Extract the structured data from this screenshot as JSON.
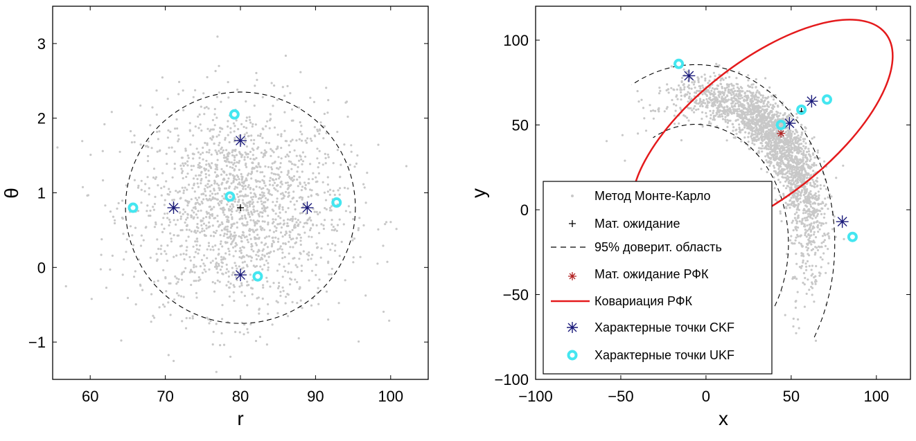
{
  "chart_data": [
    {
      "type": "scatter",
      "title": "",
      "xlabel": "r",
      "ylabel": "θ",
      "xlim": [
        55,
        105
      ],
      "ylim": [
        -1.5,
        3.5
      ],
      "xticks": [
        "60",
        "70",
        "80",
        "90",
        "100"
      ],
      "yticks": [
        "−1",
        "0",
        "1",
        "2",
        "3"
      ],
      "grid": false,
      "legend": null,
      "cloud": {
        "center": [
          80,
          0.8
        ],
        "std": [
          7,
          0.7
        ],
        "count": 1800,
        "color": "#c8c8c8"
      },
      "mean": {
        "x": 80,
        "y": 0.8
      },
      "confidence_circle": {
        "center": [
          80,
          0.8
        ],
        "rx": 15.3,
        "ry": 1.55
      },
      "ckf_points": [
        {
          "x": 80,
          "y": 1.7
        },
        {
          "x": 71.1,
          "y": 0.8
        },
        {
          "x": 88.9,
          "y": 0.8
        },
        {
          "x": 80,
          "y": -0.1
        }
      ],
      "ukf_points": [
        {
          "x": 79.2,
          "y": 2.05
        },
        {
          "x": 65.7,
          "y": 0.8
        },
        {
          "x": 78.6,
          "y": 0.95
        },
        {
          "x": 92.8,
          "y": 0.87
        },
        {
          "x": 82.3,
          "y": -0.12
        }
      ]
    },
    {
      "type": "scatter",
      "title": "",
      "xlabel": "x",
      "ylabel": "y",
      "xlim": [
        -100,
        120
      ],
      "ylim": [
        -100,
        120
      ],
      "xticks": [
        "−100",
        "−50",
        "0",
        "50",
        "100"
      ],
      "yticks": [
        "−100",
        "−50",
        "0",
        "50",
        "100"
      ],
      "grid": false,
      "legend": "bottom-left",
      "mean": {
        "x": 56,
        "y": 58
      },
      "rfk_mean": {
        "x": 44,
        "y": 45
      },
      "covariance_ellipse": {
        "center": [
          33,
          47
        ],
        "semi_major": 92,
        "semi_minor": 40,
        "angle_deg": -38
      },
      "ckf_points": [
        {
          "x": -10,
          "y": 79
        },
        {
          "x": 62,
          "y": 64
        },
        {
          "x": 49,
          "y": 51
        },
        {
          "x": 80,
          "y": -7
        }
      ],
      "ukf_points": [
        {
          "x": -16,
          "y": 86
        },
        {
          "x": 71,
          "y": 65
        },
        {
          "x": 56,
          "y": 59
        },
        {
          "x": 44,
          "y": 50
        },
        {
          "x": 86,
          "y": -16
        }
      ],
      "legend_entries": [
        "Метод Монте-Карло",
        "Мат. ожидание",
        "95% доверит. область",
        "Мат. ожидание РФК",
        "Ковариация РФК",
        "Характерные точки CKF",
        "Характерные точки UKF"
      ]
    }
  ],
  "colors": {
    "cloud": "#c8c8c8",
    "ckf": "#1a1a7a",
    "ukf": "#44e6f0",
    "ellipse": "#e41a1c",
    "rfk_mean": "#b22222",
    "axes": "#000000"
  }
}
